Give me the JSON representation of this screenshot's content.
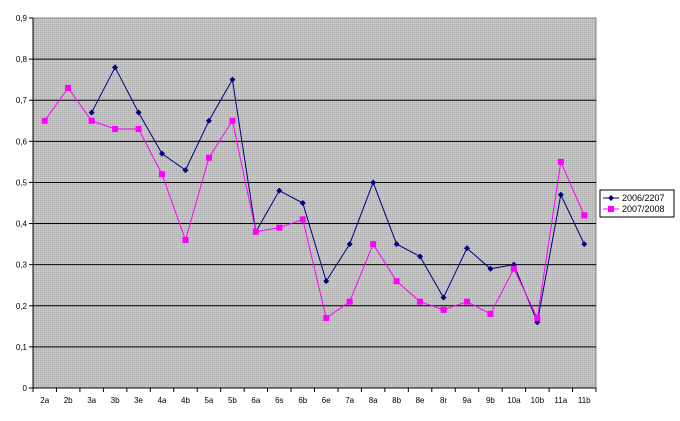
{
  "chart_data": {
    "type": "line",
    "categories": [
      "2a",
      "2b",
      "3a",
      "3b",
      "3e",
      "4a",
      "4b",
      "5a",
      "5b",
      "6a",
      "6s",
      "6b",
      "6e",
      "7a",
      "8a",
      "8b",
      "8e",
      "8r",
      "9a",
      "9b",
      "10a",
      "10b",
      "11a",
      "11b"
    ],
    "series": [
      {
        "name": "2006/2207",
        "color": "#000080",
        "marker": "diamond",
        "values": [
          null,
          null,
          0.67,
          0.78,
          0.67,
          0.57,
          0.53,
          0.65,
          0.75,
          0.38,
          0.48,
          0.45,
          0.26,
          0.35,
          0.5,
          0.35,
          0.32,
          0.22,
          0.34,
          0.29,
          0.3,
          0.16,
          0.47,
          0.35
        ]
      },
      {
        "name": "2007/2008",
        "color": "#ff00ff",
        "marker": "square",
        "values": [
          0.65,
          0.73,
          0.65,
          0.63,
          0.63,
          0.52,
          0.36,
          0.56,
          0.65,
          0.38,
          0.39,
          0.41,
          0.17,
          0.21,
          0.35,
          0.26,
          0.21,
          0.19,
          0.21,
          0.18,
          0.29,
          0.17,
          0.55,
          0.42
        ]
      }
    ],
    "y_ticks": [
      "0",
      "0,1",
      "0,2",
      "0,3",
      "0,4",
      "0,5",
      "0,6",
      "0,7",
      "0,8",
      "0,9"
    ],
    "ylim": [
      0,
      0.9
    ],
    "grid": true,
    "plot_background": "#c0c0c0",
    "legend_position": "right"
  }
}
